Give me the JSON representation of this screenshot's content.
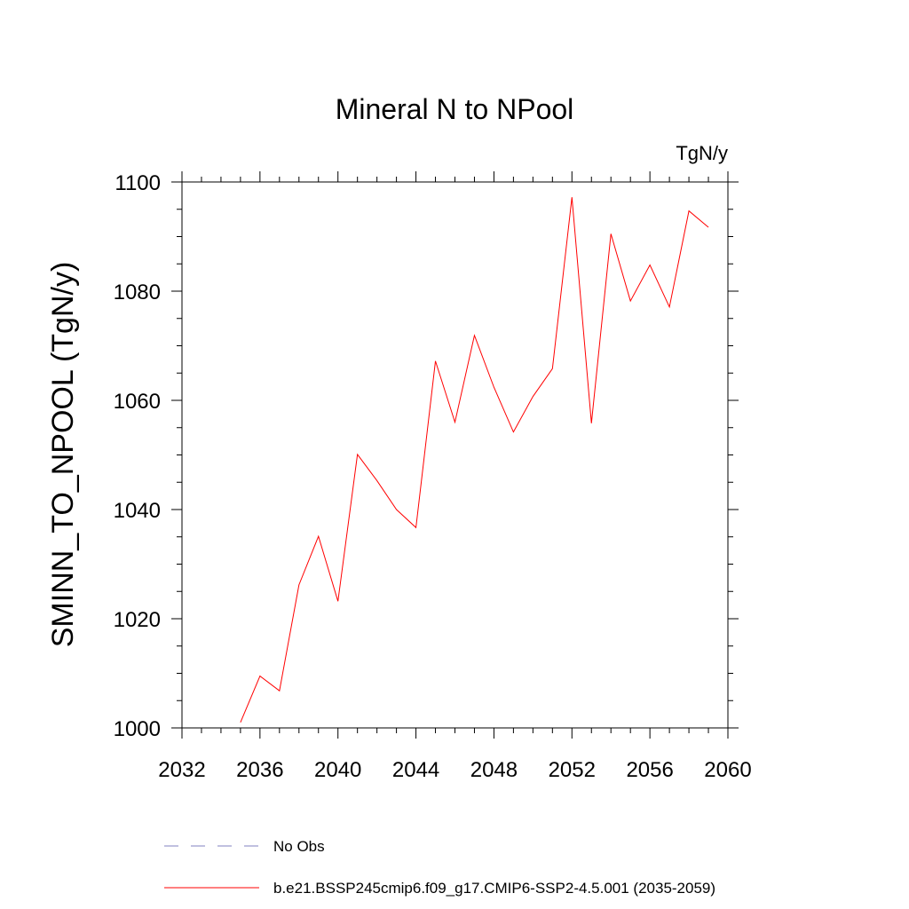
{
  "chart_data": {
    "type": "line",
    "title": "Mineral N to NPool",
    "units_label": "TgN/y",
    "xlabel": "",
    "ylabel": "SMINN_TO_NPOOL  (TgN/y)",
    "xlim": [
      2032,
      2060
    ],
    "ylim": [
      1000,
      1100
    ],
    "x_ticks": [
      2032,
      2036,
      2040,
      2044,
      2048,
      2052,
      2056,
      2060
    ],
    "y_ticks": [
      1000,
      1020,
      1040,
      1060,
      1080,
      1100
    ],
    "grid": false,
    "legend_position": "bottom",
    "series": [
      {
        "name": "b.e21.BSSP245cmip6.f09_g17.CMIP6-SSP2-4.5.001 (2035-2059)",
        "color": "#ff0000",
        "style": "solid",
        "x": [
          2035,
          2036,
          2037,
          2038,
          2039,
          2040,
          2041,
          2042,
          2043,
          2044,
          2045,
          2046,
          2047,
          2048,
          2049,
          2050,
          2051,
          2052,
          2053,
          2054,
          2055,
          2056,
          2057,
          2058,
          2059
        ],
        "y": [
          1001,
          1009.5,
          1006.8,
          1026.2,
          1035.1,
          1023.2,
          1050.1,
          1045.3,
          1040,
          1036.7,
          1067.2,
          1056,
          1071.9,
          1062.4,
          1054.2,
          1060.7,
          1065.8,
          1097.2,
          1055.8,
          1090.5,
          1078.2,
          1084.8,
          1077.1,
          1094.7,
          1091.7
        ]
      }
    ],
    "legend": [
      {
        "label": "No Obs",
        "color": "#8080c0",
        "style": "dashed"
      },
      {
        "label": "b.e21.BSSP245cmip6.f09_g17.CMIP6-SSP2-4.5.001 (2035-2059)",
        "color": "#ff0000",
        "style": "solid"
      }
    ]
  }
}
